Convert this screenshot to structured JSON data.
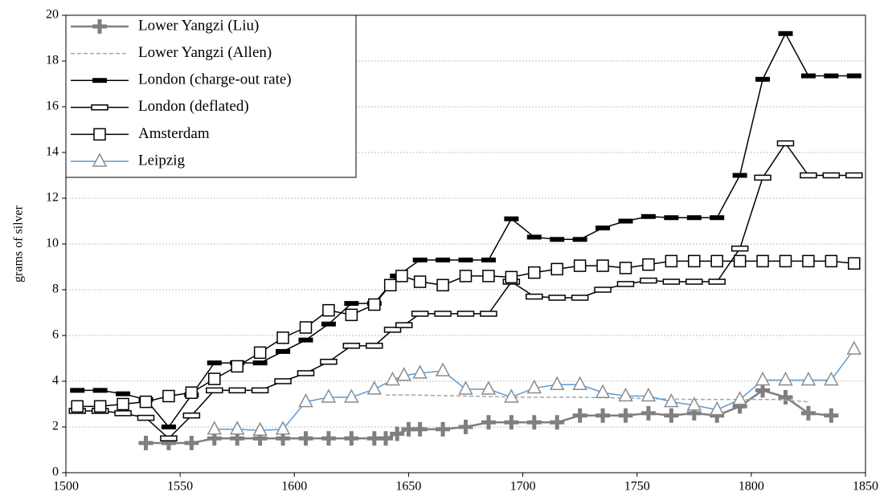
{
  "chart_data": {
    "type": "line",
    "y_label": "grams of silver",
    "xlim": [
      1500,
      1850
    ],
    "xticks": [
      1500,
      1550,
      1600,
      1650,
      1700,
      1750,
      1800,
      1850
    ],
    "ylim": [
      0,
      20
    ],
    "yticks": [
      0,
      2,
      4,
      6,
      8,
      10,
      12,
      14,
      16,
      18,
      20
    ],
    "grid": true,
    "legend": "top-left",
    "series": [
      {
        "name": "Lower Yangzi (Liu)",
        "color": "#7f7f7f",
        "marker": "plus",
        "line_color": "#7f7f7f",
        "dashed": false,
        "x": [
          1535,
          1545,
          1555,
          1565,
          1575,
          1585,
          1595,
          1605,
          1615,
          1625,
          1635,
          1640,
          1645,
          1650,
          1655,
          1665,
          1675,
          1685,
          1695,
          1705,
          1715,
          1725,
          1735,
          1745,
          1755,
          1765,
          1775,
          1785,
          1795,
          1805,
          1815,
          1825,
          1835
        ],
        "values": [
          1.3,
          1.3,
          1.3,
          1.5,
          1.5,
          1.5,
          1.5,
          1.5,
          1.5,
          1.5,
          1.5,
          1.5,
          1.7,
          1.9,
          1.9,
          1.9,
          2.0,
          2.2,
          2.2,
          2.2,
          2.2,
          2.5,
          2.5,
          2.5,
          2.6,
          2.5,
          2.6,
          2.5,
          2.9,
          3.6,
          3.3,
          2.6,
          2.5
        ]
      },
      {
        "name": "Lower Yangzi (Allen)",
        "color": "#a6a6a6",
        "marker": "none",
        "line_color": "#a6a6a6",
        "dashed": true,
        "x": [
          1640,
          1650,
          1675,
          1700,
          1725,
          1750,
          1775,
          1800,
          1810,
          1825
        ],
        "values": [
          3.4,
          3.4,
          3.35,
          3.3,
          3.3,
          3.25,
          3.2,
          3.2,
          3.2,
          3.1
        ]
      },
      {
        "name": "London (charge-out rate)",
        "color": "#000000",
        "marker": "bar",
        "line_color": "#000000",
        "dashed": false,
        "x": [
          1505,
          1515,
          1525,
          1535,
          1545,
          1555,
          1565,
          1575,
          1585,
          1595,
          1605,
          1615,
          1625,
          1635,
          1645,
          1655,
          1665,
          1675,
          1685,
          1695,
          1705,
          1715,
          1725,
          1735,
          1745,
          1755,
          1765,
          1775,
          1785,
          1795,
          1805,
          1815,
          1825,
          1835,
          1845
        ],
        "values": [
          3.6,
          3.6,
          3.45,
          3.2,
          2.0,
          3.4,
          4.8,
          4.8,
          4.8,
          5.3,
          5.8,
          6.5,
          7.4,
          7.4,
          8.6,
          9.3,
          9.3,
          9.3,
          9.3,
          11.1,
          10.3,
          10.2,
          10.2,
          10.7,
          11.0,
          11.2,
          11.15,
          11.15,
          11.15,
          13.0,
          17.2,
          19.2,
          17.35,
          17.35,
          17.35
        ]
      },
      {
        "name": "London (deflated)",
        "color": "#000000",
        "marker": "hollow-bar",
        "line_color": "#000000",
        "dashed": false,
        "x": [
          1505,
          1515,
          1525,
          1535,
          1545,
          1555,
          1565,
          1575,
          1585,
          1595,
          1605,
          1615,
          1625,
          1635,
          1643,
          1648,
          1655,
          1665,
          1675,
          1685,
          1695,
          1705,
          1715,
          1725,
          1735,
          1745,
          1755,
          1765,
          1775,
          1785,
          1795,
          1805,
          1815,
          1825,
          1835,
          1845
        ],
        "values": [
          2.7,
          2.7,
          2.6,
          2.4,
          1.5,
          2.5,
          3.6,
          3.6,
          3.6,
          4.0,
          4.35,
          4.85,
          5.55,
          5.55,
          6.25,
          6.45,
          6.95,
          6.95,
          6.95,
          6.95,
          8.35,
          7.7,
          7.65,
          7.65,
          8.0,
          8.25,
          8.4,
          8.35,
          8.35,
          8.35,
          9.8,
          12.9,
          14.4,
          13.0,
          13.0,
          13.0
        ]
      },
      {
        "name": "Amsterdam",
        "color": "#000000",
        "marker": "square",
        "line_color": "#000000",
        "dashed": false,
        "x": [
          1505,
          1515,
          1525,
          1535,
          1545,
          1555,
          1565,
          1575,
          1585,
          1595,
          1605,
          1615,
          1625,
          1635,
          1642,
          1647,
          1655,
          1665,
          1675,
          1685,
          1695,
          1705,
          1715,
          1725,
          1735,
          1745,
          1755,
          1765,
          1775,
          1785,
          1795,
          1805,
          1815,
          1825,
          1835,
          1845
        ],
        "values": [
          2.9,
          2.9,
          3.0,
          3.1,
          3.35,
          3.5,
          4.1,
          4.65,
          5.25,
          5.9,
          6.35,
          7.1,
          6.9,
          7.35,
          8.2,
          8.6,
          8.35,
          8.2,
          8.6,
          8.6,
          8.55,
          8.75,
          8.9,
          9.05,
          9.05,
          8.95,
          9.1,
          9.25,
          9.25,
          9.25,
          9.25,
          9.25,
          9.25,
          9.25,
          9.25,
          9.15
        ]
      },
      {
        "name": "Leipzig",
        "color": "#8c8c8c",
        "marker": "triangle",
        "line_color": "#5b9bd5",
        "dashed": false,
        "x": [
          1565,
          1575,
          1585,
          1595,
          1605,
          1615,
          1625,
          1635,
          1643,
          1648,
          1655,
          1665,
          1675,
          1685,
          1695,
          1705,
          1715,
          1725,
          1735,
          1745,
          1755,
          1765,
          1775,
          1785,
          1795,
          1805,
          1815,
          1825,
          1835,
          1845
        ],
        "values": [
          1.9,
          1.9,
          1.85,
          1.9,
          3.1,
          3.3,
          3.3,
          3.65,
          4.05,
          4.25,
          4.35,
          4.45,
          3.65,
          3.65,
          3.3,
          3.7,
          3.85,
          3.85,
          3.5,
          3.35,
          3.35,
          3.1,
          2.95,
          2.75,
          3.2,
          4.05,
          4.05,
          4.05,
          4.05,
          5.4
        ]
      }
    ]
  }
}
